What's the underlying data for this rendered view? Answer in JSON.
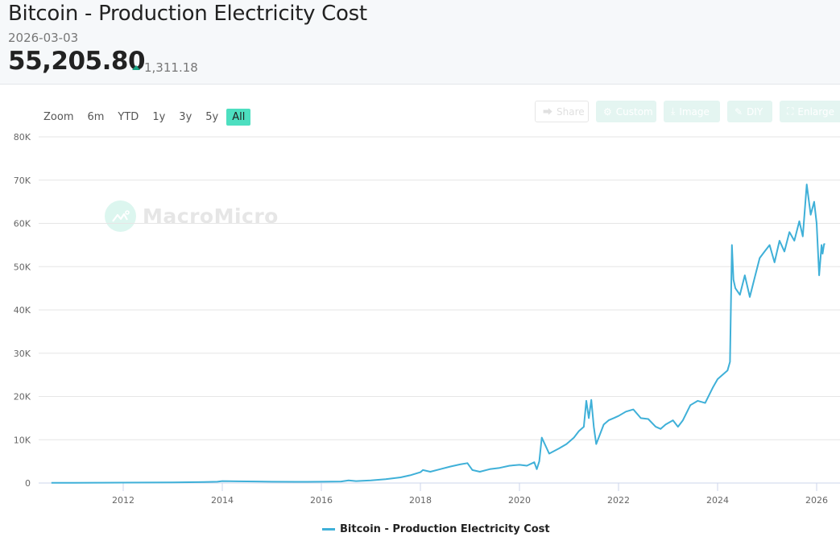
{
  "header": {
    "title": "Bitcoin - Production Electricity Cost",
    "date": "2026-03-03",
    "value": "55,205.80",
    "change": "1,311.18",
    "change_direction": "up",
    "change_color": "#1aa384"
  },
  "zoom_bar": {
    "label": "Zoom",
    "options": [
      "6m",
      "YTD",
      "1y",
      "3y",
      "5y",
      "All"
    ],
    "active": "All",
    "active_color": "#4ddfc0"
  },
  "toolbar": {
    "buttons": [
      {
        "label": "Share",
        "icon": "share-icon"
      },
      {
        "label": "Custom",
        "icon": "gear-icon"
      },
      {
        "label": "Image",
        "icon": "download-icon"
      },
      {
        "label": "DIY",
        "icon": "pencil-icon"
      },
      {
        "label": "Enlarge",
        "icon": "expand-icon"
      }
    ]
  },
  "watermark": {
    "text": "MacroMicro"
  },
  "chart_data": {
    "type": "line",
    "title": "Bitcoin - Production Electricity Cost",
    "xlabel": "",
    "ylabel": "",
    "x_range": [
      2010.5,
      2026.25
    ],
    "ylim": [
      0,
      80000
    ],
    "y_ticks": [
      0,
      10000,
      20000,
      30000,
      40000,
      50000,
      60000,
      70000,
      80000
    ],
    "y_tick_labels": [
      "0",
      "10K",
      "20K",
      "30K",
      "40K",
      "50K",
      "60K",
      "70K",
      "80K"
    ],
    "x_ticks": [
      2012,
      2014,
      2016,
      2018,
      2020,
      2022,
      2024,
      2026
    ],
    "x_tick_labels": [
      "2012",
      "2014",
      "2016",
      "2018",
      "2020",
      "2022",
      "2024",
      "2026"
    ],
    "grid": true,
    "legend_position": "bottom-center",
    "series": [
      {
        "name": "Bitcoin - Production Electricity Cost",
        "color": "#3fb0d8",
        "x": [
          2010.55,
          2011.0,
          2011.5,
          2012.0,
          2012.5,
          2013.0,
          2013.5,
          2013.9,
          2014.0,
          2014.3,
          2014.7,
          2015.0,
          2015.5,
          2016.0,
          2016.4,
          2016.55,
          2016.7,
          2017.0,
          2017.3,
          2017.6,
          2017.8,
          2018.0,
          2018.05,
          2018.2,
          2018.4,
          2018.6,
          2018.8,
          2018.95,
          2019.05,
          2019.2,
          2019.4,
          2019.6,
          2019.8,
          2020.0,
          2020.15,
          2020.3,
          2020.35,
          2020.4,
          2020.45,
          2020.6,
          2020.8,
          2020.95,
          2021.1,
          2021.2,
          2021.3,
          2021.35,
          2021.4,
          2021.45,
          2021.5,
          2021.55,
          2021.6,
          2021.7,
          2021.8,
          2021.9,
          2022.0,
          2022.15,
          2022.3,
          2022.45,
          2022.6,
          2022.75,
          2022.85,
          2022.95,
          2023.1,
          2023.2,
          2023.3,
          2023.45,
          2023.6,
          2023.75,
          2023.9,
          2024.0,
          2024.1,
          2024.2,
          2024.25,
          2024.29,
          2024.32,
          2024.36,
          2024.45,
          2024.55,
          2024.65,
          2024.75,
          2024.85,
          2024.95,
          2025.05,
          2025.15,
          2025.25,
          2025.35,
          2025.45,
          2025.55,
          2025.65,
          2025.72,
          2025.8,
          2025.88,
          2025.95,
          2026.0,
          2026.05,
          2026.1,
          2026.12,
          2026.15,
          2026.17
        ],
        "values": [
          50,
          60,
          80,
          100,
          120,
          150,
          200,
          300,
          450,
          400,
          350,
          300,
          280,
          300,
          350,
          600,
          450,
          600,
          900,
          1300,
          1800,
          2500,
          3000,
          2600,
          3200,
          3800,
          4300,
          4600,
          3000,
          2600,
          3200,
          3500,
          4000,
          4200,
          4000,
          4800,
          3200,
          5000,
          10500,
          6800,
          8000,
          9000,
          10500,
          12000,
          13000,
          19000,
          15000,
          19200,
          13000,
          9000,
          10500,
          13500,
          14500,
          15000,
          15500,
          16500,
          17000,
          15000,
          14800,
          13000,
          12500,
          13500,
          14500,
          13000,
          14500,
          18000,
          19000,
          18500,
          22000,
          24000,
          25000,
          26000,
          28000,
          55000,
          47000,
          45000,
          43500,
          48000,
          43000,
          47500,
          52000,
          53500,
          55000,
          51000,
          56000,
          53500,
          58000,
          56000,
          60500,
          57000,
          69000,
          62000,
          65000,
          60000,
          48000,
          55000,
          53000,
          55206,
          55206
        ]
      }
    ]
  },
  "legend": {
    "items": [
      {
        "label": "Bitcoin - Production Electricity Cost",
        "color": "#3fb0d8"
      }
    ]
  }
}
